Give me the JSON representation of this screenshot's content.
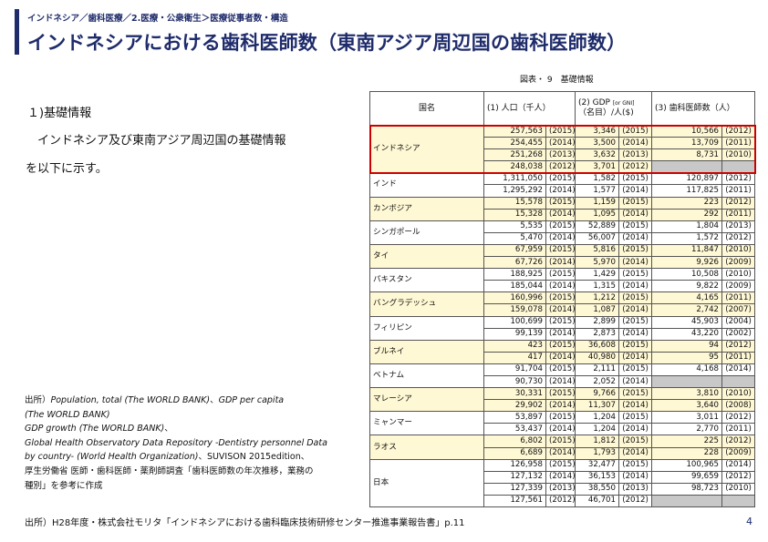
{
  "breadcrumb": "インドネシア／歯科医療／2.医療・公衆衛生＞医療従事者数・構造",
  "title": "インドネシアにおける歯科医師数（東南アジア周辺国の歯科医師数）",
  "figure_caption": "図表・ 9　基礎情報",
  "section": {
    "heading": "１)基礎情報",
    "body_line1": "インドネシア及び東南アジア周辺国の基礎情報",
    "body_line2": "を以下に示す。"
  },
  "table": {
    "headers": {
      "name": "国名",
      "population": "(1) 人口（千人）",
      "gdp_line1_pre": "(2) GDP ",
      "gdp_line1_small": "[or GNI]",
      "gdp_line2": "（名目）/人($)",
      "dentists": "(3) 歯科医師数（人）"
    },
    "countries": [
      {
        "name": "インドネシア",
        "highlight": true,
        "outlined": true,
        "rows": [
          {
            "pop": "257,563",
            "pop_year": "(2015)",
            "gdp": "3,346",
            "gdp_year": "(2015)",
            "dent": "10,566",
            "dent_year": "(2012)"
          },
          {
            "pop": "254,455",
            "pop_year": "(2014)",
            "gdp": "3,500",
            "gdp_year": "(2014)",
            "dent": "13,709",
            "dent_year": "(2011)"
          },
          {
            "pop": "251,268",
            "pop_year": "(2013)",
            "gdp": "3,632",
            "gdp_year": "(2013)",
            "dent": "8,731",
            "dent_year": "(2010)"
          },
          {
            "pop": "248,038",
            "pop_year": "(2012)",
            "gdp": "3,701",
            "gdp_year": "(2012)",
            "dent": "",
            "dent_year": "",
            "blank": true
          }
        ]
      },
      {
        "name": "インド",
        "highlight": false,
        "rows": [
          {
            "pop": "1,311,050",
            "pop_year": "(2015)",
            "gdp": "1,582",
            "gdp_year": "(2015)",
            "dent": "120,897",
            "dent_year": "(2012)"
          },
          {
            "pop": "1,295,292",
            "pop_year": "(2014)",
            "gdp": "1,577",
            "gdp_year": "(2014)",
            "dent": "117,825",
            "dent_year": "(2011)"
          }
        ]
      },
      {
        "name": "カンボジア",
        "highlight": true,
        "rows": [
          {
            "pop": "15,578",
            "pop_year": "(2015)",
            "gdp": "1,159",
            "gdp_year": "(2015)",
            "dent": "223",
            "dent_year": "(2012)"
          },
          {
            "pop": "15,328",
            "pop_year": "(2014)",
            "gdp": "1,095",
            "gdp_year": "(2014)",
            "dent": "292",
            "dent_year": "(2011)"
          }
        ]
      },
      {
        "name": "シンガポール",
        "highlight": false,
        "rows": [
          {
            "pop": "5,535",
            "pop_year": "(2015)",
            "gdp": "52,889",
            "gdp_year": "(2015)",
            "dent": "1,804",
            "dent_year": "(2013)"
          },
          {
            "pop": "5,470",
            "pop_year": "(2014)",
            "gdp": "56,007",
            "gdp_year": "(2014)",
            "dent": "1,572",
            "dent_year": "(2012)"
          }
        ]
      },
      {
        "name": "タイ",
        "highlight": true,
        "rows": [
          {
            "pop": "67,959",
            "pop_year": "(2015)",
            "gdp": "5,816",
            "gdp_year": "(2015)",
            "dent": "11,847",
            "dent_year": "(2010)"
          },
          {
            "pop": "67,726",
            "pop_year": "(2014)",
            "gdp": "5,970",
            "gdp_year": "(2014)",
            "dent": "9,926",
            "dent_year": "(2009)"
          }
        ]
      },
      {
        "name": "パキスタン",
        "highlight": false,
        "rows": [
          {
            "pop": "188,925",
            "pop_year": "(2015)",
            "gdp": "1,429",
            "gdp_year": "(2015)",
            "dent": "10,508",
            "dent_year": "(2010)"
          },
          {
            "pop": "185,044",
            "pop_year": "(2014)",
            "gdp": "1,315",
            "gdp_year": "(2014)",
            "dent": "9,822",
            "dent_year": "(2009)"
          }
        ]
      },
      {
        "name": "バングラデッシュ",
        "highlight": true,
        "rows": [
          {
            "pop": "160,996",
            "pop_year": "(2015)",
            "gdp": "1,212",
            "gdp_year": "(2015)",
            "dent": "4,165",
            "dent_year": "(2011)"
          },
          {
            "pop": "159,078",
            "pop_year": "(2014)",
            "gdp": "1,087",
            "gdp_year": "(2014)",
            "dent": "2,742",
            "dent_year": "(2007)"
          }
        ]
      },
      {
        "name": "フィリピン",
        "highlight": false,
        "rows": [
          {
            "pop": "100,699",
            "pop_year": "(2015)",
            "gdp": "2,899",
            "gdp_year": "(2015)",
            "dent": "45,903",
            "dent_year": "(2004)"
          },
          {
            "pop": "99,139",
            "pop_year": "(2014)",
            "gdp": "2,873",
            "gdp_year": "(2014)",
            "dent": "43,220",
            "dent_year": "(2002)"
          }
        ]
      },
      {
        "name": "ブルネイ",
        "highlight": true,
        "rows": [
          {
            "pop": "423",
            "pop_year": "(2015)",
            "gdp": "36,608",
            "gdp_year": "(2015)",
            "dent": "94",
            "dent_year": "(2012)"
          },
          {
            "pop": "417",
            "pop_year": "(2014)",
            "gdp": "40,980",
            "gdp_year": "(2014)",
            "dent": "95",
            "dent_year": "(2011)"
          }
        ]
      },
      {
        "name": "ベトナム",
        "highlight": false,
        "rows": [
          {
            "pop": "91,704",
            "pop_year": "(2015)",
            "gdp": "2,111",
            "gdp_year": "(2015)",
            "dent": "4,168",
            "dent_year": "(2014)"
          },
          {
            "pop": "90,730",
            "pop_year": "(2014)",
            "gdp": "2,052",
            "gdp_year": "(2014)",
            "dent": "",
            "dent_year": "",
            "blank": true
          }
        ]
      },
      {
        "name": "マレーシア",
        "highlight": true,
        "rows": [
          {
            "pop": "30,331",
            "pop_year": "(2015)",
            "gdp": "9,766",
            "gdp_year": "(2015)",
            "dent": "3,810",
            "dent_year": "(2010)"
          },
          {
            "pop": "29,902",
            "pop_year": "(2014)",
            "gdp": "11,307",
            "gdp_year": "(2014)",
            "dent": "3,640",
            "dent_year": "(2008)"
          }
        ]
      },
      {
        "name": "ミャンマー",
        "highlight": false,
        "rows": [
          {
            "pop": "53,897",
            "pop_year": "(2015)",
            "gdp": "1,204",
            "gdp_year": "(2015)",
            "dent": "3,011",
            "dent_year": "(2012)"
          },
          {
            "pop": "53,437",
            "pop_year": "(2014)",
            "gdp": "1,204",
            "gdp_year": "(2014)",
            "dent": "2,770",
            "dent_year": "(2011)"
          }
        ]
      },
      {
        "name": "ラオス",
        "highlight": true,
        "rows": [
          {
            "pop": "6,802",
            "pop_year": "(2015)",
            "gdp": "1,812",
            "gdp_year": "(2015)",
            "dent": "225",
            "dent_year": "(2012)"
          },
          {
            "pop": "6,689",
            "pop_year": "(2014)",
            "gdp": "1,793",
            "gdp_year": "(2014)",
            "dent": "228",
            "dent_year": "(2009)"
          }
        ]
      },
      {
        "name": "日本",
        "highlight": false,
        "rows": [
          {
            "pop": "126,958",
            "pop_year": "(2015)",
            "gdp": "32,477",
            "gdp_year": "(2015)",
            "dent": "100,965",
            "dent_year": "(2014)"
          },
          {
            "pop": "127,132",
            "pop_year": "(2014)",
            "gdp": "36,153",
            "gdp_year": "(2014)",
            "dent": "99,659",
            "dent_year": "(2012)"
          },
          {
            "pop": "127,339",
            "pop_year": "(2013)",
            "gdp": "38,550",
            "gdp_year": "(2013)",
            "dent": "98,723",
            "dent_year": "(2010)"
          },
          {
            "pop": "127,561",
            "pop_year": "(2012)",
            "gdp": "46,701",
            "gdp_year": "(2012)",
            "dent": "",
            "dent_year": "",
            "blank": true
          }
        ]
      }
    ]
  },
  "sources": {
    "l1_pre": "出所）",
    "l1_italic": "Population, total (The WORLD BANK)",
    "l1_mid": "、",
    "l1_italic2": "GDP per capita",
    "l2": " (The WORLD BANK)",
    "l3_italic": "GDP growth (The WORLD BANK)",
    "l3_post": "、",
    "l4": "Global Health Observatory Data Repository -Dentistry personnel Data",
    "l5_italic": "by country- (World Health Organization)",
    "l5_post": "、SUVISON 2015edition、",
    "l6": "厚生労働省 医師・歯科医師・薬剤師調査「歯科医師数の年次推移，業務の",
    "l7": "種別」を参考に作成"
  },
  "footer_source": "出所）H28年度・株式会社モリタ「インドネシアにおける歯科臨床技術研修センター推進事業報告書」p.11",
  "page_number": "4"
}
